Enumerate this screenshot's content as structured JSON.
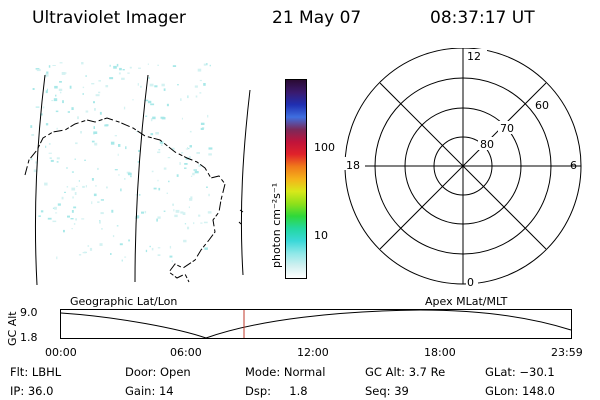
{
  "header": {
    "instrument": "Ultraviolet Imager",
    "date": "21 May 07",
    "time": "08:37:17 UT"
  },
  "colorbar": {
    "unit_label": "photon cm⁻²s⁻¹",
    "ticks": [
      "100",
      "10"
    ],
    "colors": [
      "#2a0a33",
      "#3a1a6e",
      "#1f2fb2",
      "#3f6fe0",
      "#7a2a5a",
      "#c0133a",
      "#e0222a",
      "#f07a1a",
      "#f5b21a",
      "#d8e81a",
      "#8fe01a",
      "#2fd83a",
      "#23d8a0",
      "#3ad8d8",
      "#8ee8e8",
      "#d0f0f0",
      "#ffffff"
    ]
  },
  "polar": {
    "lat_labels": [
      "80",
      "70",
      "60"
    ],
    "mlt_labels": {
      "top": "12",
      "left": "18",
      "right": "6",
      "bottom": "0"
    }
  },
  "timeline": {
    "left_label": "Geographic Lat/Lon",
    "right_label": "Apex MLat/MLT",
    "axis_title": "GC Alt",
    "y_ticks": [
      "9.0",
      "1.8"
    ],
    "x_ticks": [
      "00:00",
      "06:00",
      "12:00",
      "18:00",
      "23:59"
    ],
    "marker_color": "#c0392b"
  },
  "info": {
    "row1": {
      "flt": "Flt: LBHL",
      "door": "Door: Open",
      "mode": "Mode: Normal",
      "gcalt": "GC Alt: 3.7 Re",
      "glat": "GLat: −30.1"
    },
    "row2": {
      "ip": "IP: 36.0",
      "gain": "Gain: 14",
      "dsp": "Dsp:     1.8",
      "seq": "Seq: 39",
      "glon": "GLon: 148.0"
    }
  }
}
